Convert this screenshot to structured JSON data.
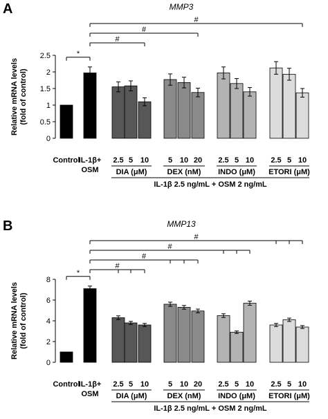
{
  "chart_data": [
    {
      "panel": "A",
      "title": "MMP3",
      "type": "bar",
      "ylabel": [
        "Relative mRNA levels",
        "(fold of control)"
      ],
      "ylim": [
        0,
        2.5
      ],
      "yticks": [
        "0",
        "0.5",
        "1",
        "1.5",
        "2",
        "2.5"
      ],
      "control_labels": [
        "Control",
        "IL-1β+",
        "OSM"
      ],
      "bars": [
        {
          "value": 1.0,
          "error": 0,
          "color": "#000000",
          "conc": ""
        },
        {
          "value": 1.97,
          "error": 0.18,
          "color": "#000000",
          "conc": ""
        },
        {
          "value": 1.55,
          "error": 0.15,
          "color": "#575757",
          "conc": "2.5"
        },
        {
          "value": 1.58,
          "error": 0.15,
          "color": "#575757",
          "conc": "5"
        },
        {
          "value": 1.1,
          "error": 0.12,
          "color": "#575757",
          "conc": "10"
        },
        {
          "value": 1.77,
          "error": 0.17,
          "color": "#8a8a8a",
          "conc": "5"
        },
        {
          "value": 1.68,
          "error": 0.16,
          "color": "#8a8a8a",
          "conc": "10"
        },
        {
          "value": 1.38,
          "error": 0.13,
          "color": "#8a8a8a",
          "conc": "20"
        },
        {
          "value": 1.97,
          "error": 0.18,
          "color": "#b3b3b3",
          "conc": "2.5"
        },
        {
          "value": 1.65,
          "error": 0.15,
          "color": "#b3b3b3",
          "conc": "5"
        },
        {
          "value": 1.4,
          "error": 0.13,
          "color": "#b3b3b3",
          "conc": "10"
        },
        {
          "value": 2.12,
          "error": 0.19,
          "color": "#dcdcdc",
          "conc": "2.5"
        },
        {
          "value": 1.93,
          "error": 0.18,
          "color": "#dcdcdc",
          "conc": "5"
        },
        {
          "value": 1.37,
          "error": 0.13,
          "color": "#dcdcdc",
          "conc": "10"
        }
      ],
      "groups": [
        {
          "label": "DIA (μM)",
          "bars": [
            2,
            4
          ]
        },
        {
          "label": "DEX (nM)",
          "bars": [
            5,
            7
          ]
        },
        {
          "label": "INDO (μM)",
          "bars": [
            8,
            10
          ]
        },
        {
          "label": "ETORI (μM)",
          "bars": [
            11,
            13
          ]
        }
      ],
      "footer": "IL-1β 2.5 ng/mL + OSM 2 ng/mL",
      "significance": [
        {
          "label": "*",
          "from": 0,
          "to": 1,
          "ticks": []
        },
        {
          "label": "#",
          "from": 1,
          "to": 4,
          "ticks": []
        },
        {
          "label": "#",
          "from": 1,
          "to": 7,
          "ticks": []
        },
        {
          "label": "#",
          "from": 1,
          "to": 13,
          "ticks": []
        }
      ]
    },
    {
      "panel": "B",
      "title": "MMP13",
      "type": "bar",
      "ylabel": [
        "Relative mRNA levels",
        "(fold of control)"
      ],
      "ylim": [
        0,
        8
      ],
      "yticks": [
        "0",
        "2",
        "4",
        "6",
        "8"
      ],
      "control_labels": [
        "Control",
        "IL-1β+",
        "OSM"
      ],
      "bars": [
        {
          "value": 1.0,
          "error": 0,
          "color": "#000000",
          "conc": ""
        },
        {
          "value": 7.1,
          "error": 0.25,
          "color": "#000000",
          "conc": ""
        },
        {
          "value": 4.3,
          "error": 0.18,
          "color": "#575757",
          "conc": "2.5"
        },
        {
          "value": 3.8,
          "error": 0.15,
          "color": "#575757",
          "conc": "5"
        },
        {
          "value": 3.6,
          "error": 0.15,
          "color": "#575757",
          "conc": "10"
        },
        {
          "value": 5.6,
          "error": 0.2,
          "color": "#8a8a8a",
          "conc": "5"
        },
        {
          "value": 5.3,
          "error": 0.18,
          "color": "#8a8a8a",
          "conc": "10"
        },
        {
          "value": 4.95,
          "error": 0.18,
          "color": "#8a8a8a",
          "conc": "20"
        },
        {
          "value": 4.5,
          "error": 0.18,
          "color": "#b3b3b3",
          "conc": "2.5"
        },
        {
          "value": 2.9,
          "error": 0.12,
          "color": "#b3b3b3",
          "conc": "5"
        },
        {
          "value": 5.7,
          "error": 0.2,
          "color": "#b3b3b3",
          "conc": "10"
        },
        {
          "value": 3.6,
          "error": 0.15,
          "color": "#dcdcdc",
          "conc": "2.5"
        },
        {
          "value": 4.1,
          "error": 0.16,
          "color": "#dcdcdc",
          "conc": "5"
        },
        {
          "value": 3.4,
          "error": 0.14,
          "color": "#dcdcdc",
          "conc": "10"
        }
      ],
      "groups": [
        {
          "label": "DIA (μM)",
          "bars": [
            2,
            4
          ]
        },
        {
          "label": "DEX (nM)",
          "bars": [
            5,
            7
          ]
        },
        {
          "label": "INDO (μM)",
          "bars": [
            8,
            10
          ]
        },
        {
          "label": "ETORI (μM)",
          "bars": [
            11,
            13
          ]
        }
      ],
      "footer": "IL-1β 2.5 ng/mL + OSM 2 ng/mL",
      "significance": [
        {
          "label": "*",
          "from": 0,
          "to": 1,
          "ticks": []
        },
        {
          "label": "#",
          "from": 1,
          "to": 4,
          "ticks": [
            2,
            3
          ]
        },
        {
          "label": "#",
          "from": 1,
          "to": 7,
          "ticks": [
            5,
            6
          ]
        },
        {
          "label": "#",
          "from": 1,
          "to": 10,
          "ticks": [
            8,
            9
          ]
        },
        {
          "label": "#",
          "from": 1,
          "to": 13,
          "ticks": [
            11,
            12
          ]
        }
      ]
    }
  ]
}
